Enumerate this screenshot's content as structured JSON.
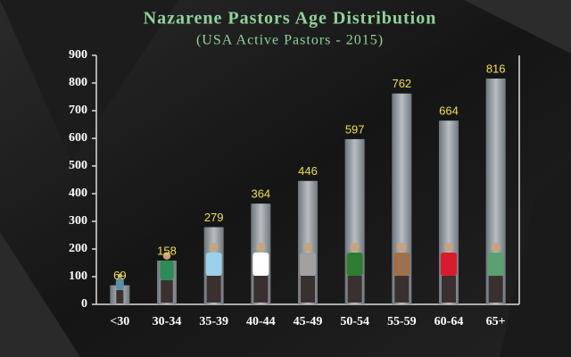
{
  "chart_data": {
    "type": "bar",
    "title": "Nazarene Pastors Age Distribution",
    "subtitle": "(USA Active Pastors - 2015)",
    "categories": [
      "<30",
      "30-34",
      "35-39",
      "40-44",
      "45-49",
      "50-54",
      "55-59",
      "60-64",
      "65+"
    ],
    "values": [
      69,
      158,
      279,
      364,
      446,
      597,
      762,
      664,
      816
    ],
    "ylim": [
      0,
      900
    ],
    "yticks": [
      0,
      100,
      200,
      300,
      400,
      500,
      600,
      700,
      800,
      900
    ],
    "grid": false
  }
}
